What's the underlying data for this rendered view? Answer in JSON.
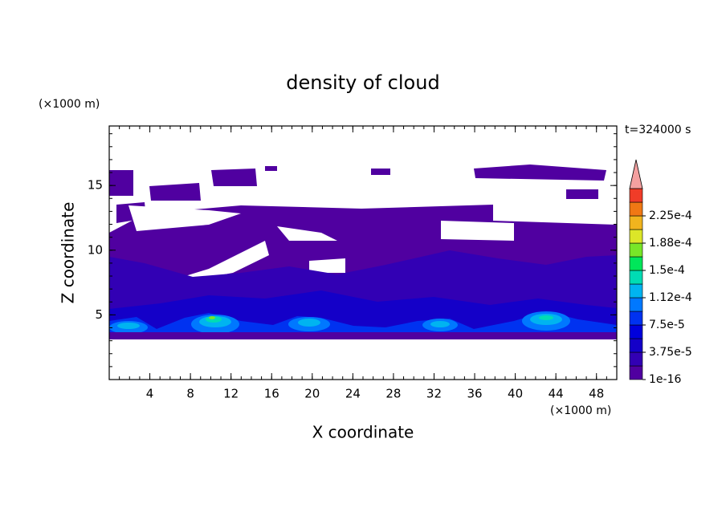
{
  "chart_data": {
    "type": "contour",
    "title": "density of cloud",
    "y_unit": "(×1000 m)",
    "x_unit": "(×1000 m)",
    "time_label": "t=324000 s",
    "xlabel": "X coordinate",
    "ylabel": "Z coordinate",
    "xlim": [
      0,
      50
    ],
    "xticks": [
      4,
      8,
      12,
      16,
      20,
      24,
      28,
      32,
      36,
      40,
      44,
      48
    ],
    "ylim": [
      0,
      19.6
    ],
    "yticks": [
      5,
      10,
      15
    ],
    "colorbar": {
      "ticks": [
        {
          "value": 1e-16,
          "label": "1e-16"
        },
        {
          "value": 3.75e-05,
          "label": "3.75e-5"
        },
        {
          "value": 7.5e-05,
          "label": "7.5e-5"
        },
        {
          "value": 0.000112,
          "label": "1.12e-4"
        },
        {
          "value": 0.00015,
          "label": "1.5e-4"
        },
        {
          "value": 0.000188,
          "label": "1.88e-4"
        },
        {
          "value": 0.000225,
          "label": "2.25e-4"
        }
      ],
      "colors": [
        "#5000a0",
        "#3200b4",
        "#1400c8",
        "#0000dc",
        "#0032f0",
        "#0078ff",
        "#00b4f0",
        "#00dcb4",
        "#00e65a",
        "#78e628",
        "#dce628",
        "#f0b41e",
        "#f07814",
        "#f03c28"
      ],
      "extend_color": "#f4a0a0"
    }
  }
}
